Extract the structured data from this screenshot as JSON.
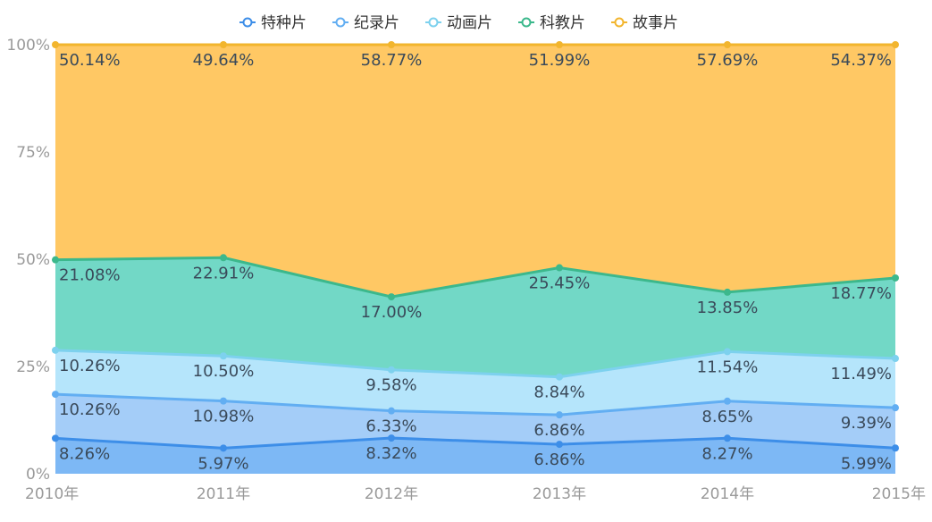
{
  "chart_data": {
    "type": "area",
    "stacked": true,
    "normalized": true,
    "categories": [
      "2010年",
      "2011年",
      "2012年",
      "2013年",
      "2014年",
      "2015年"
    ],
    "y_ticks": [
      "0%",
      "25%",
      "50%",
      "75%",
      "100%"
    ],
    "ylim": [
      0,
      100
    ],
    "legend_position": "top-center",
    "series": [
      {
        "name": "特种片",
        "color": "#3d8ee8",
        "fill": "#7db8f5",
        "values": [
          8.26,
          5.97,
          8.32,
          6.86,
          8.27,
          5.99
        ],
        "labels": [
          "8.26%",
          "5.97%",
          "8.32%",
          "6.86%",
          "8.27%",
          "5.99%"
        ]
      },
      {
        "name": "纪录片",
        "color": "#62aef2",
        "fill": "#a4cdf8",
        "values": [
          10.26,
          10.98,
          6.33,
          6.86,
          8.65,
          9.39
        ],
        "labels": [
          "10.26%",
          "10.98%",
          "6.33%",
          "6.86%",
          "8.65%",
          "9.39%"
        ]
      },
      {
        "name": "动画片",
        "color": "#7dd1ee",
        "fill": "#b5e5fb",
        "values": [
          10.26,
          10.5,
          9.58,
          8.84,
          11.54,
          11.49
        ],
        "labels": [
          "10.26%",
          "10.50%",
          "9.58%",
          "8.84%",
          "11.54%",
          "11.49%"
        ]
      },
      {
        "name": "科教片",
        "color": "#3cb88c",
        "fill": "#72d8c6",
        "values": [
          21.08,
          22.91,
          17.0,
          25.45,
          13.85,
          18.77
        ],
        "labels": [
          "21.08%",
          "22.91%",
          "17.00%",
          "25.45%",
          "13.85%",
          "18.77%"
        ]
      },
      {
        "name": "故事片",
        "color": "#f2b52e",
        "fill": "#ffc864",
        "values": [
          50.14,
          49.64,
          58.77,
          51.99,
          57.69,
          54.37
        ],
        "labels": [
          "50.14%",
          "49.64%",
          "58.77%",
          "51.99%",
          "57.69%",
          "54.37%"
        ]
      }
    ]
  }
}
